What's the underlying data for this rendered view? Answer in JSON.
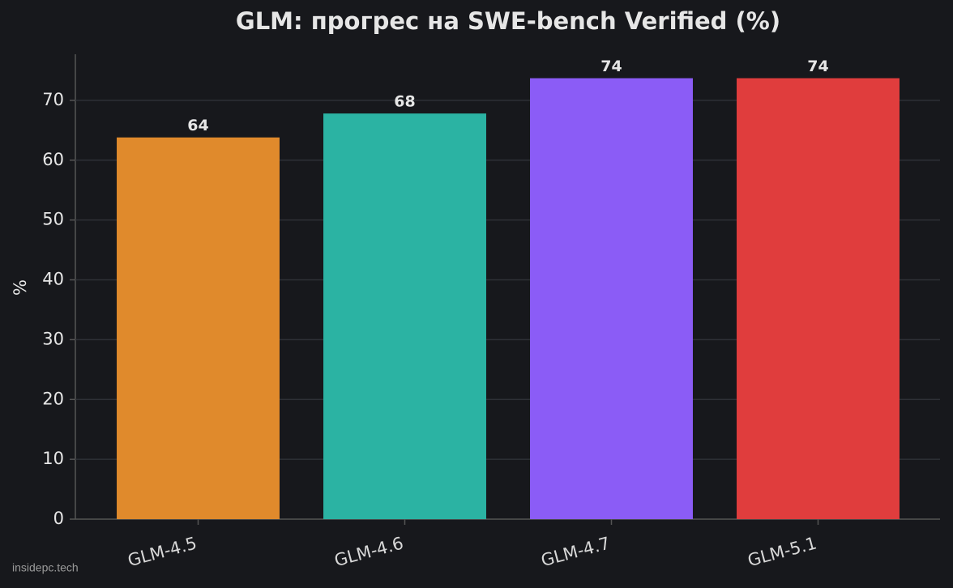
{
  "chart_data": {
    "type": "bar",
    "title": "GLM: прогрес на SWE-bench Verified (%)",
    "y_label": "%",
    "categories": [
      "GLM-4.5",
      "GLM-4.6",
      "GLM-4.7",
      "GLM-5.1"
    ],
    "values": [
      63.8,
      67.8,
      73.7,
      73.7
    ],
    "value_labels": [
      "64",
      "68",
      "74",
      "74"
    ],
    "colors": [
      "#e08a2c",
      "#2bb3a3",
      "#8b5cf6",
      "#e03d3d"
    ],
    "ylim": [
      0,
      77.7
    ],
    "yticks": [
      0,
      10,
      20,
      30,
      40,
      50,
      60,
      70
    ],
    "grid": true,
    "watermark": "insidepc.tech"
  }
}
